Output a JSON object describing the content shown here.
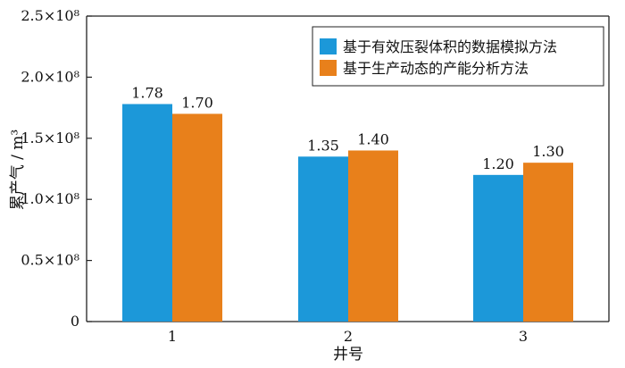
{
  "chart_data": {
    "type": "bar",
    "categories": [
      "1",
      "2",
      "3"
    ],
    "series": [
      {
        "name": "基于有效压裂体积的数据模拟方法",
        "values": [
          1.78,
          1.35,
          1.2
        ],
        "color": "#1c98d9"
      },
      {
        "name": "基于生产动态的产能分析方法",
        "values": [
          1.7,
          1.4,
          1.3
        ],
        "color": "#e8801b"
      }
    ],
    "value_labels": [
      [
        "1.78",
        "1.35",
        "1.20"
      ],
      [
        "1.70",
        "1.40",
        "1.30"
      ]
    ],
    "y_ticks": [
      0,
      0.5,
      1.0,
      1.5,
      2.0,
      2.5
    ],
    "y_tick_labels": [
      "0",
      "0.5×10⁸",
      "1.0×10⁸",
      "1.5×10⁸",
      "2.0×10⁸",
      "2.5×10⁸"
    ],
    "ylim": [
      0,
      2.5
    ],
    "xlabel": "井号",
    "ylabel": "累产气 / m³",
    "legend_position": "top-right",
    "grid": false
  }
}
